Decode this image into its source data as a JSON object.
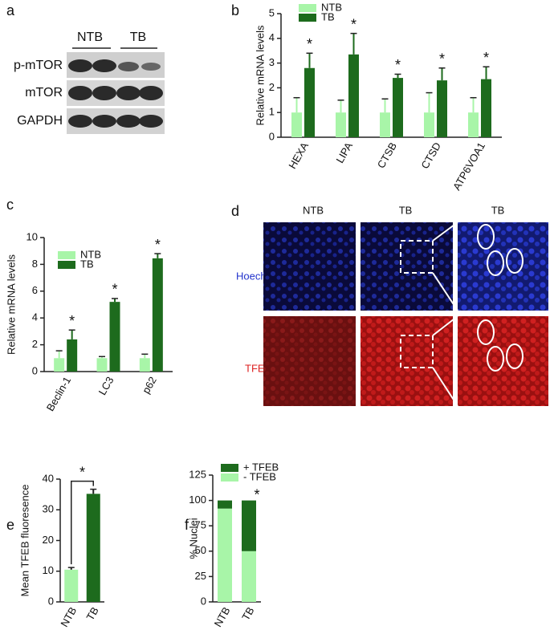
{
  "panels": {
    "a": {
      "letter": "a",
      "groups": [
        "NTB",
        "TB"
      ],
      "rows": [
        "p-mTOR",
        "mTOR",
        "GAPDH"
      ]
    },
    "d": {
      "letter": "d",
      "columns": [
        "NTB",
        "TB",
        "TB"
      ],
      "rows": [
        "Hoechst",
        "TFEB"
      ]
    },
    "b": {
      "letter": "b"
    },
    "c": {
      "letter": "c"
    },
    "e": {
      "letter": "e"
    },
    "f": {
      "letter": "f"
    }
  },
  "chart_data": [
    {
      "type": "bar",
      "ylabel": "Relative mRNA levels",
      "categories": [
        "HEXA",
        "LIPA",
        "CTSB",
        "CTSD",
        "ATP6VOA1"
      ],
      "series": [
        {
          "name": "NTB",
          "color": "#a8f5a8",
          "values": [
            1,
            1,
            1,
            1,
            1
          ],
          "errors": [
            0.6,
            0.5,
            0.55,
            0.8,
            0.6
          ]
        },
        {
          "name": "TB",
          "color": "#1d6b1d",
          "values": [
            2.8,
            3.35,
            2.4,
            2.3,
            2.35
          ],
          "errors": [
            0.6,
            0.85,
            0.15,
            0.5,
            0.5
          ]
        }
      ],
      "annotations": [
        "*",
        "*",
        "*",
        "*",
        "*"
      ],
      "ylim": [
        0,
        5
      ],
      "yticks": [
        0,
        1,
        2,
        3,
        4,
        5
      ],
      "legend": "top-left"
    },
    {
      "type": "bar",
      "ylabel": "Relative mRNA levels",
      "categories": [
        "Beclin-1",
        "LC3",
        "p62"
      ],
      "series": [
        {
          "name": "NTB",
          "color": "#a8f5a8",
          "values": [
            1,
            1,
            1
          ],
          "errors": [
            0.55,
            0.12,
            0.3
          ]
        },
        {
          "name": "TB",
          "color": "#1d6b1d",
          "values": [
            2.4,
            5.2,
            8.45
          ],
          "errors": [
            0.7,
            0.25,
            0.35
          ]
        }
      ],
      "annotations": [
        "*",
        "*",
        "*"
      ],
      "ylim": [
        0,
        10
      ],
      "yticks": [
        0,
        2,
        4,
        6,
        8,
        10
      ],
      "legend": "top-left"
    },
    {
      "type": "bar",
      "ylabel": "Mean TFEB fluoresence",
      "categories": [
        "NTB",
        "TB"
      ],
      "values": [
        10.5,
        35.2
      ],
      "errors": [
        0.7,
        1.5
      ],
      "colors": [
        "#a8f5a8",
        "#1d6b1d"
      ],
      "annotation": "*",
      "ylim": [
        0,
        40
      ],
      "yticks": [
        0,
        10,
        20,
        30,
        40
      ]
    },
    {
      "type": "bar",
      "stacked": true,
      "ylabel": "% Nuclei",
      "categories": [
        "NTB",
        "TB"
      ],
      "series": [
        {
          "name": "- TFEB",
          "color": "#a8f5a8",
          "values": [
            92,
            50
          ]
        },
        {
          "name": "+ TFEB",
          "color": "#1d6b1d",
          "values": [
            8,
            50
          ]
        }
      ],
      "annotation": "*",
      "ylim": [
        0,
        125
      ],
      "yticks": [
        0,
        25,
        50,
        75,
        100,
        125
      ],
      "legend": "top-left"
    }
  ]
}
